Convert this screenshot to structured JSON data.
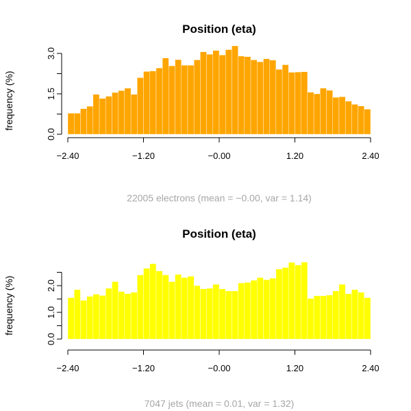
{
  "chart_data": [
    {
      "type": "bar",
      "title": "Position (eta)",
      "xlabel": "",
      "ylabel": "frequency (%)",
      "caption": "22005 electrons (mean = −0.00, var = 1.14)",
      "color": "#ffa500",
      "xlim": [
        -2.4,
        2.4
      ],
      "ylim": [
        0,
        3.0
      ],
      "x_ticks": [
        -2.4,
        -1.2,
        0.0,
        1.2,
        2.4
      ],
      "x_tick_labels": [
        "−2.40",
        "−1.20",
        "−0.00",
        "1.20",
        "2.40"
      ],
      "y_ticks": [
        0.0,
        0.75,
        1.5,
        2.25,
        3.0
      ],
      "y_tick_labels": [
        "0.0",
        "",
        "1.5",
        "",
        "3.0"
      ],
      "bin_width": 0.1,
      "values": [
        0.78,
        0.78,
        0.95,
        1.04,
        1.48,
        1.33,
        1.41,
        1.55,
        1.62,
        1.71,
        1.48,
        2.1,
        2.33,
        2.35,
        2.46,
        2.83,
        2.54,
        2.77,
        2.56,
        2.56,
        2.76,
        3.06,
        2.97,
        3.11,
        2.94,
        3.14,
        3.28,
        2.9,
        2.88,
        2.76,
        2.69,
        2.8,
        2.75,
        2.41,
        2.58,
        2.3,
        2.31,
        2.32,
        1.56,
        1.5,
        1.71,
        1.63,
        1.37,
        1.39,
        1.23,
        1.11,
        1.05,
        0.93,
        0.66
      ]
    },
    {
      "type": "bar",
      "title": "Position (eta)",
      "xlabel": "",
      "ylabel": "frequency (%)",
      "caption": "7047 jets (mean = 0.01, var = 1.32)",
      "color": "#ffff00",
      "xlim": [
        -2.4,
        2.4
      ],
      "ylim": [
        0,
        3.0
      ],
      "x_ticks": [
        -2.4,
        -1.2,
        0.0,
        1.2,
        2.4
      ],
      "x_tick_labels": [
        "−2.40",
        "−1.20",
        "−0.00",
        "1.20",
        "2.40"
      ],
      "y_ticks": [
        0.0,
        0.5,
        1.0,
        1.5,
        2.0,
        2.5
      ],
      "y_tick_labels": [
        "0.0",
        "",
        "1.0",
        "",
        "2.0",
        ""
      ],
      "bin_width": 0.1,
      "values": [
        1.55,
        1.85,
        1.45,
        1.6,
        1.68,
        1.63,
        1.9,
        2.15,
        1.78,
        1.7,
        1.75,
        2.4,
        2.65,
        2.82,
        2.55,
        2.4,
        2.15,
        2.42,
        2.3,
        2.35,
        2.0,
        1.88,
        1.9,
        2.05,
        1.88,
        1.8,
        1.8,
        2.1,
        2.12,
        2.2,
        2.3,
        2.22,
        2.28,
        2.62,
        2.68,
        2.87,
        2.77,
        2.88,
        1.52,
        1.62,
        1.62,
        1.65,
        1.8,
        2.05,
        1.7,
        1.85,
        1.75,
        1.55,
        1.55
      ]
    }
  ]
}
